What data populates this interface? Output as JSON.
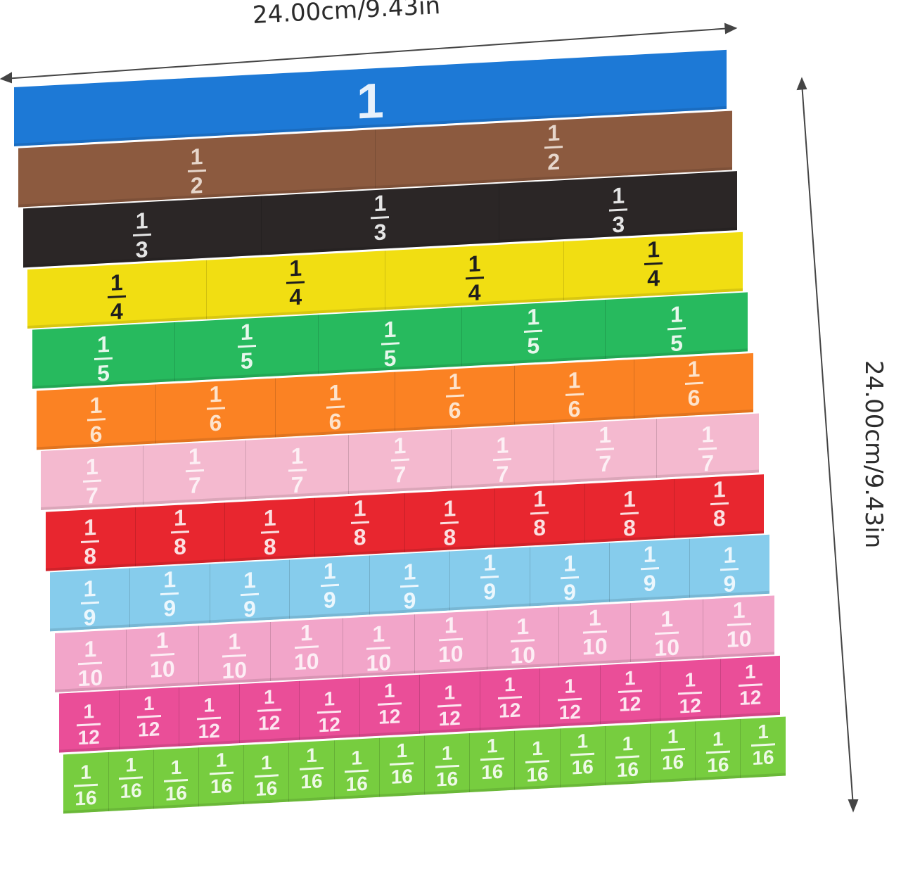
{
  "dimensions": {
    "width_label": "24.00cm/9.43in",
    "height_label": "24.00cm/9.43in"
  },
  "strips": [
    {
      "label_num": "1",
      "label_den": "",
      "pieces": 1,
      "color": "#1d79d6",
      "text_color": "#e8f1fb"
    },
    {
      "label_num": "1",
      "label_den": "2",
      "pieces": 2,
      "color": "#8c5a3f",
      "text_color": "#e6d6cb"
    },
    {
      "label_num": "1",
      "label_den": "3",
      "pieces": 3,
      "color": "#2b2626",
      "text_color": "#e5e5e5"
    },
    {
      "label_num": "1",
      "label_den": "4",
      "pieces": 4,
      "color": "#f1de12",
      "text_color": "#1e1e1e"
    },
    {
      "label_num": "1",
      "label_den": "5",
      "pieces": 5,
      "color": "#27ba5e",
      "text_color": "#e7f7ec"
    },
    {
      "label_num": "1",
      "label_den": "6",
      "pieces": 6,
      "color": "#fb8223",
      "text_color": "#fde3cc"
    },
    {
      "label_num": "1",
      "label_den": "7",
      "pieces": 7,
      "color": "#f4b9cf",
      "text_color": "#fdf0f5"
    },
    {
      "label_num": "1",
      "label_den": "8",
      "pieces": 8,
      "color": "#e8262f",
      "text_color": "#fbe0e1"
    },
    {
      "label_num": "1",
      "label_den": "9",
      "pieces": 9,
      "color": "#86ccec",
      "text_color": "#ecf7fd"
    },
    {
      "label_num": "1",
      "label_den": "10",
      "pieces": 10,
      "color": "#f2a5c9",
      "text_color": "#fdeef5"
    },
    {
      "label_num": "1",
      "label_den": "12",
      "pieces": 12,
      "color": "#ea4e98",
      "text_color": "#fde6f0"
    },
    {
      "label_num": "1",
      "label_den": "16",
      "pieces": 16,
      "color": "#77cd3f",
      "text_color": "#eef9e7"
    }
  ]
}
